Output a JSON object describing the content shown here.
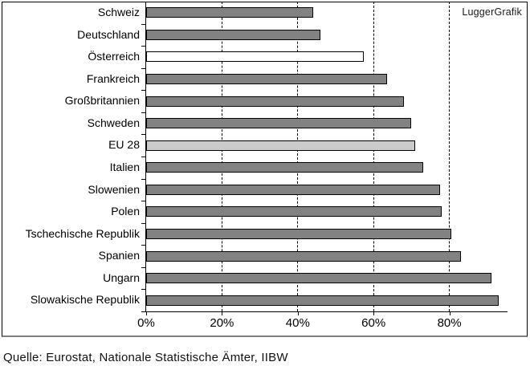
{
  "figure": {
    "watermark": "LuggerGrafik",
    "source": "Quelle: Eurostat, Nationale Statistische Ämter, IIBW"
  },
  "chart_data": {
    "type": "bar",
    "orientation": "horizontal",
    "title": "",
    "xlabel": "",
    "ylabel": "",
    "unit": "%",
    "xlim": [
      0,
      95
    ],
    "xticks": [
      0,
      20,
      40,
      60,
      80
    ],
    "xtick_labels": [
      "0%",
      "20%",
      "40%",
      "60%",
      "80%"
    ],
    "grid": "vertical-dashed",
    "legend": "none",
    "categories": [
      "Schweiz",
      "Deutschland",
      "Österreich",
      "Frankreich",
      "Großbritannien",
      "Schweden",
      "EU 28",
      "Italien",
      "Slowenien",
      "Polen",
      "Tschechische Republik",
      "Spanien",
      "Ungarn",
      "Slowakische Republik"
    ],
    "values": [
      44,
      46,
      57.5,
      63.5,
      68,
      70,
      71,
      73,
      77.5,
      78,
      80.5,
      83,
      91,
      93
    ],
    "bar_fills": [
      "#828282",
      "#828282",
      "#ffffff",
      "#828282",
      "#828282",
      "#828282",
      "#cbcbcb",
      "#828282",
      "#828282",
      "#828282",
      "#828282",
      "#828282",
      "#828282",
      "#828282"
    ],
    "colors": {
      "bar_default": "#828282",
      "bar_eu28": "#cbcbcb",
      "bar_oesterreich": "#ffffff",
      "bar_border": "#000000",
      "gridline": "#000000",
      "box_border": "#000000"
    }
  }
}
